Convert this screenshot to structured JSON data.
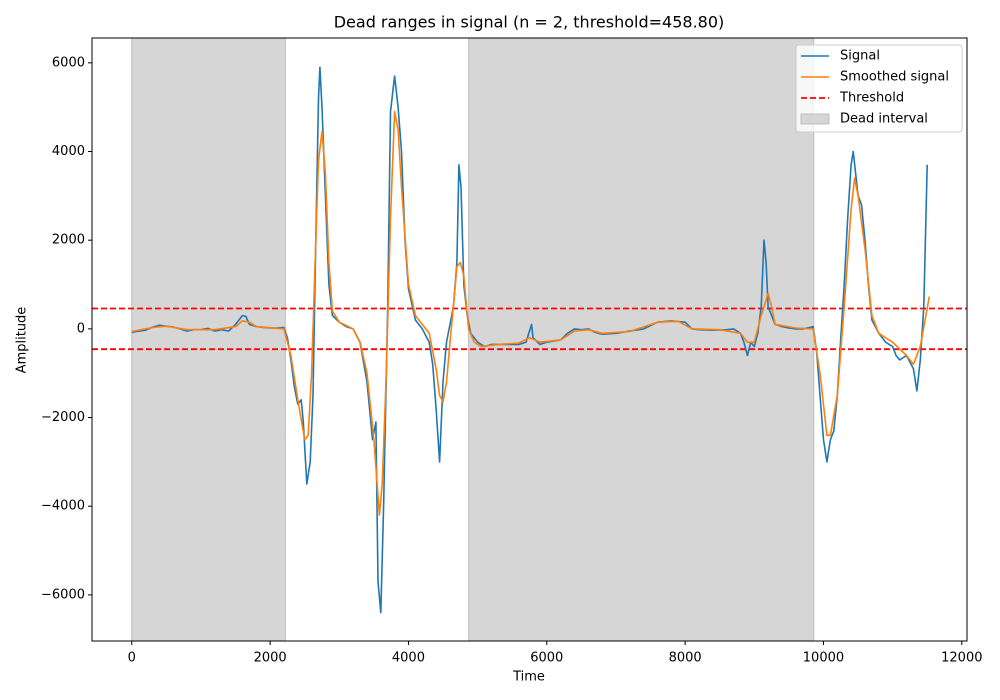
{
  "chart_data": {
    "type": "line",
    "title": "Dead ranges in signal (n = 2, threshold=458.80)",
    "x_label": "Time",
    "y_label": "Amplitude",
    "xlim": [
      -575,
      12075
    ],
    "ylim": [
      -7040,
      6560
    ],
    "xticks": [
      0,
      2000,
      4000,
      6000,
      8000,
      10000,
      12000
    ],
    "yticks": [
      {
        "value": -6000,
        "label": "−6000"
      },
      {
        "value": -4000,
        "label": "−4000"
      },
      {
        "value": -2000,
        "label": "−2000"
      },
      0,
      2000,
      4000,
      6000
    ],
    "legend_position": "upper right",
    "series": [
      {
        "name": "Signal",
        "color": "#1f77b4",
        "x": [
          0,
          100,
          200,
          300,
          400,
          500,
          600,
          700,
          800,
          900,
          1000,
          1100,
          1200,
          1300,
          1400,
          1500,
          1600,
          1650,
          1700,
          1800,
          1900,
          2000,
          2100,
          2200,
          2250,
          2300,
          2350,
          2400,
          2450,
          2480,
          2530,
          2580,
          2620,
          2660,
          2700,
          2720,
          2750,
          2800,
          2850,
          2900,
          3000,
          3100,
          3200,
          3300,
          3400,
          3480,
          3530,
          3560,
          3600,
          3640,
          3700,
          3740,
          3800,
          3850,
          3900,
          3950,
          4000,
          4100,
          4200,
          4300,
          4350,
          4400,
          4450,
          4500,
          4550,
          4600,
          4650,
          4700,
          4730,
          4760,
          4800,
          4850,
          4900,
          5000,
          5100,
          5200,
          5400,
          5600,
          5700,
          5780,
          5800,
          5900,
          6000,
          6200,
          6300,
          6400,
          6500,
          6600,
          6700,
          6800,
          7000,
          7200,
          7400,
          7600,
          7800,
          8000,
          8100,
          8200,
          8400,
          8600,
          8700,
          8800,
          8850,
          8900,
          8950,
          9000,
          9050,
          9100,
          9140,
          9170,
          9200,
          9300,
          9400,
          9500,
          9600,
          9700,
          9800,
          9850,
          9900,
          9950,
          10000,
          10050,
          10100,
          10150,
          10200,
          10250,
          10300,
          10350,
          10400,
          10430,
          10500,
          10550,
          10600,
          10650,
          10700,
          10800,
          10900,
          11000,
          11050,
          11100,
          11200,
          11300,
          11350,
          11400,
          11450,
          11500
        ],
        "values": [
          -80,
          -50,
          -30,
          40,
          80,
          60,
          40,
          0,
          -50,
          -20,
          -20,
          10,
          -50,
          -20,
          -50,
          100,
          300,
          280,
          100,
          50,
          30,
          20,
          20,
          30,
          -200,
          -700,
          -1300,
          -1700,
          -1600,
          -2100,
          -3500,
          -3000,
          -1500,
          2000,
          5200,
          5900,
          5000,
          3000,
          1000,
          300,
          150,
          50,
          0,
          -300,
          -1200,
          -2500,
          -2100,
          -5700,
          -6400,
          -4000,
          500,
          4900,
          5700,
          5000,
          4000,
          2000,
          900,
          200,
          0,
          -300,
          -800,
          -1800,
          -3000,
          -1200,
          -300,
          100,
          500,
          1500,
          3700,
          3200,
          1000,
          300,
          -100,
          -300,
          -400,
          -350,
          -350,
          -350,
          -300,
          100,
          -200,
          -350,
          -300,
          -250,
          -100,
          0,
          -20,
          0,
          -80,
          -120,
          -100,
          -50,
          0,
          150,
          180,
          150,
          0,
          -20,
          -30,
          -20,
          0,
          -100,
          -300,
          -600,
          -300,
          -400,
          -100,
          500,
          2000,
          1500,
          500,
          100,
          50,
          20,
          0,
          0,
          30,
          50,
          -500,
          -1500,
          -2500,
          -3000,
          -2500,
          -2300,
          -1500,
          -200,
          1000,
          2500,
          3700,
          4000,
          3000,
          2800,
          2000,
          1000,
          200,
          -100,
          -300,
          -400,
          -600,
          -700,
          -600,
          -900,
          -1400,
          -700,
          500,
          3700
        ]
      },
      {
        "name": "Smoothed signal",
        "color": "#ff7f0e",
        "x": [
          0,
          300,
          500,
          800,
          1200,
          1500,
          1600,
          1700,
          1800,
          2200,
          2300,
          2400,
          2500,
          2550,
          2600,
          2650,
          2700,
          2750,
          2800,
          2850,
          2900,
          3000,
          3200,
          3300,
          3400,
          3500,
          3580,
          3620,
          3680,
          3740,
          3800,
          3850,
          3900,
          4000,
          4100,
          4300,
          4400,
          4450,
          4500,
          4550,
          4600,
          4650,
          4700,
          4750,
          4800,
          4870,
          4950,
          5050,
          5300,
          5600,
          5750,
          5900,
          6200,
          6400,
          6600,
          6800,
          7200,
          7600,
          7900,
          8100,
          8500,
          8800,
          8900,
          9000,
          9100,
          9200,
          9250,
          9300,
          9600,
          9850,
          9950,
          10050,
          10100,
          10200,
          10300,
          10400,
          10450,
          10500,
          10600,
          10700,
          10800,
          11000,
          11200,
          11300,
          11400,
          11530
        ],
        "values": [
          -60,
          30,
          60,
          -20,
          -20,
          50,
          180,
          150,
          50,
          0,
          -600,
          -1600,
          -2500,
          -2400,
          -1000,
          1500,
          3800,
          4450,
          3500,
          1500,
          400,
          150,
          0,
          -300,
          -1000,
          -2500,
          -4200,
          -3500,
          -1000,
          2500,
          4900,
          4500,
          3200,
          1000,
          300,
          -100,
          -900,
          -1500,
          -1650,
          -1200,
          -300,
          500,
          1400,
          1500,
          1200,
          0,
          -300,
          -400,
          -350,
          -320,
          -200,
          -300,
          -250,
          -50,
          -20,
          -100,
          -60,
          150,
          170,
          0,
          -20,
          -100,
          -300,
          -300,
          300,
          800,
          500,
          100,
          20,
          0,
          -1000,
          -2400,
          -2400,
          -1500,
          500,
          2700,
          3400,
          3000,
          1800,
          300,
          -100,
          -300,
          -600,
          -800,
          -400,
          730
        ]
      }
    ],
    "threshold": {
      "name": "Threshold",
      "value": 458.8,
      "color": "#ff0000"
    },
    "dead_interval": {
      "name": "Dead interval",
      "color": "#d6d6d6",
      "ranges": [
        [
          0,
          2220
        ],
        [
          4870,
          9860
        ]
      ]
    }
  }
}
